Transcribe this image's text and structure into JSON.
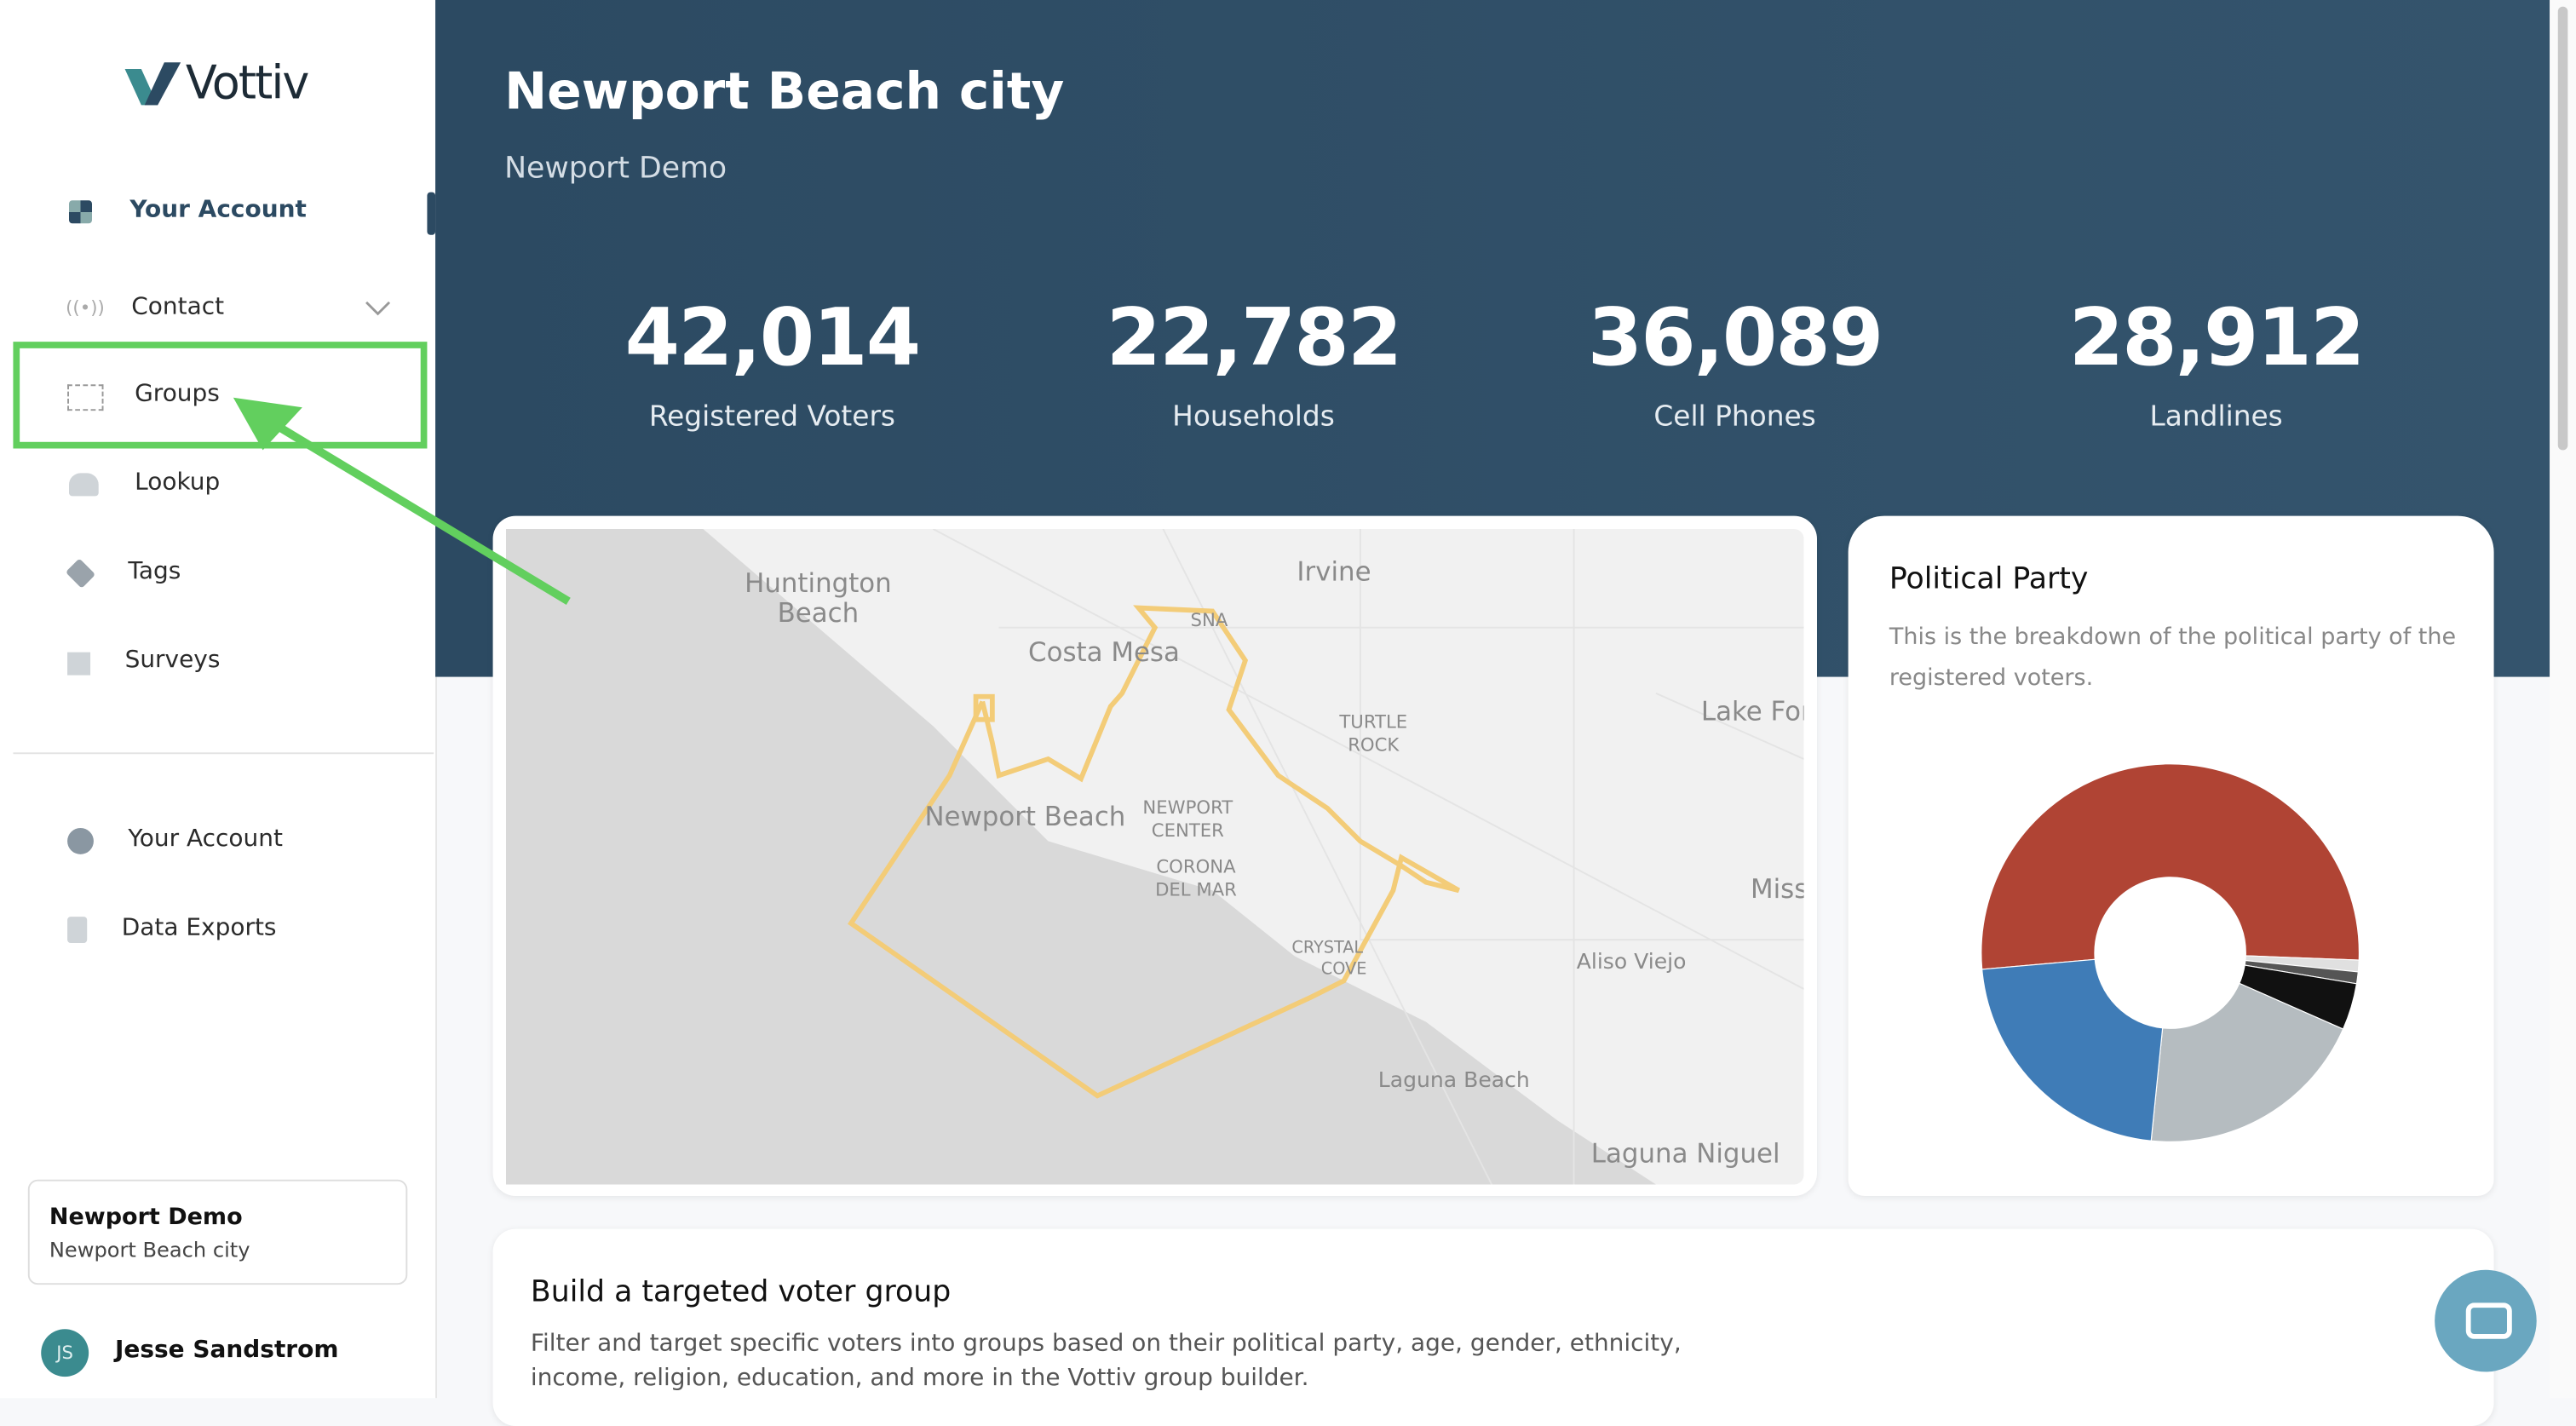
{
  "brand": "Vottiv",
  "nav": {
    "primary": [
      "Your Account",
      "Contact",
      "Groups",
      "Lookup",
      "Tags",
      "Surveys"
    ],
    "secondary": [
      "Your Account",
      "Data Exports"
    ]
  },
  "workspace": {
    "name": "Newport Demo",
    "city": "Newport Beach city"
  },
  "user": {
    "initials": "JS",
    "name": "Jesse Sandstrom"
  },
  "header": {
    "title": "Newport Beach city",
    "subtitle": "Newport Demo"
  },
  "stats": [
    {
      "value": "42,014",
      "label": "Registered Voters"
    },
    {
      "value": "22,782",
      "label": "Households"
    },
    {
      "value": "36,089",
      "label": "Cell Phones"
    },
    {
      "value": "28,912",
      "label": "Landlines"
    }
  ],
  "map": {
    "labels": [
      "Huntington",
      "Beach",
      "Irvine",
      "Costa Mesa",
      "SNA",
      "TURTLE",
      "ROCK",
      "Lake Fores",
      "Newport Beach",
      "NEWPORT",
      "CENTER",
      "CORONA",
      "DEL MAR",
      "Miss",
      "CRYSTAL",
      "COVE",
      "Aliso Viejo",
      "Laguna Beach",
      "Laguna Niguel"
    ]
  },
  "political_party": {
    "title": "Political Party",
    "description": "This is the breakdown of the political party of the registered voters.",
    "chart": {
      "type": "pie",
      "values": [
        52,
        1,
        1,
        4,
        20,
        22
      ],
      "colors": [
        "#b04434",
        "#e0e0e0",
        "#555555",
        "#111111",
        "#b5bcc0",
        "#3f7cb7"
      ]
    }
  },
  "builder": {
    "title": "Build a targeted voter group",
    "description": "Filter and target specific voters into groups based on their political party, age, gender, ethnicity, income, religion, education, and more in the Vottiv group builder."
  }
}
